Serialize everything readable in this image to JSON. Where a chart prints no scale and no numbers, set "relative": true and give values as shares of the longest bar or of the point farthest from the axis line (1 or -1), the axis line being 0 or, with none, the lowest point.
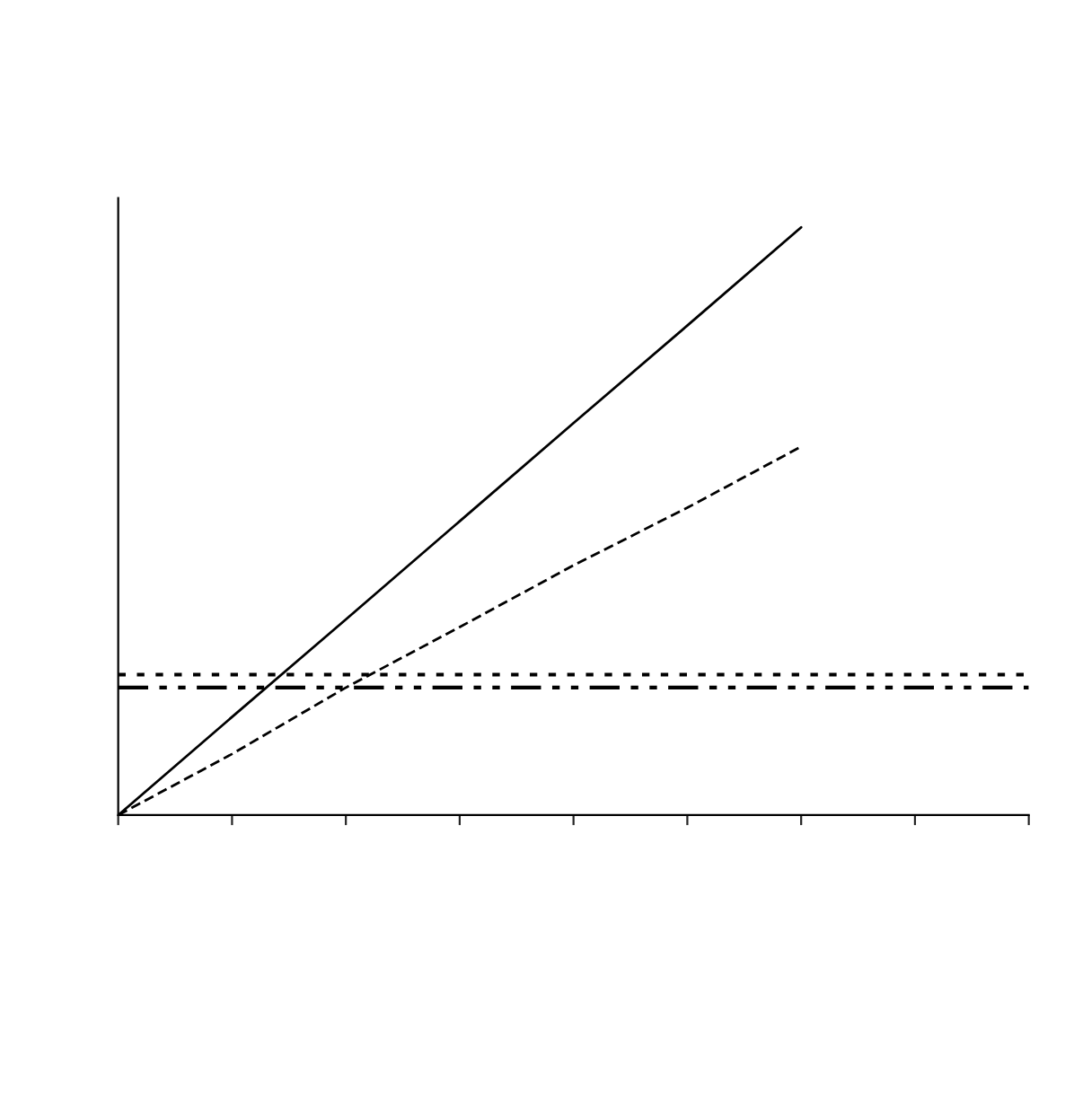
{
  "chart_data": {
    "type": "line",
    "relative": true,
    "categories": [
      null,
      null,
      null,
      null,
      null,
      null,
      null,
      null,
      null
    ],
    "series": [
      {
        "color": "#000000",
        "line_style": "solid",
        "values": [
          0,
          0.167,
          0.333,
          0.5,
          0.667,
          0.833,
          1,
          null,
          null
        ]
      },
      {
        "color": "#000000",
        "line_style": "dashed",
        "values": [
          0,
          0.104,
          0.217,
          0.32,
          0.425,
          0.523,
          0.627,
          null,
          null
        ]
      }
    ],
    "ref_lines": [
      {
        "axis": "y",
        "value": 0.239,
        "color": "#000000",
        "line_style": "dotted"
      },
      {
        "axis": "y",
        "value": 0.217,
        "color": "#000000",
        "line_style": "dashdot"
      }
    ],
    "marker": "none",
    "grid": false,
    "legend": false
  }
}
